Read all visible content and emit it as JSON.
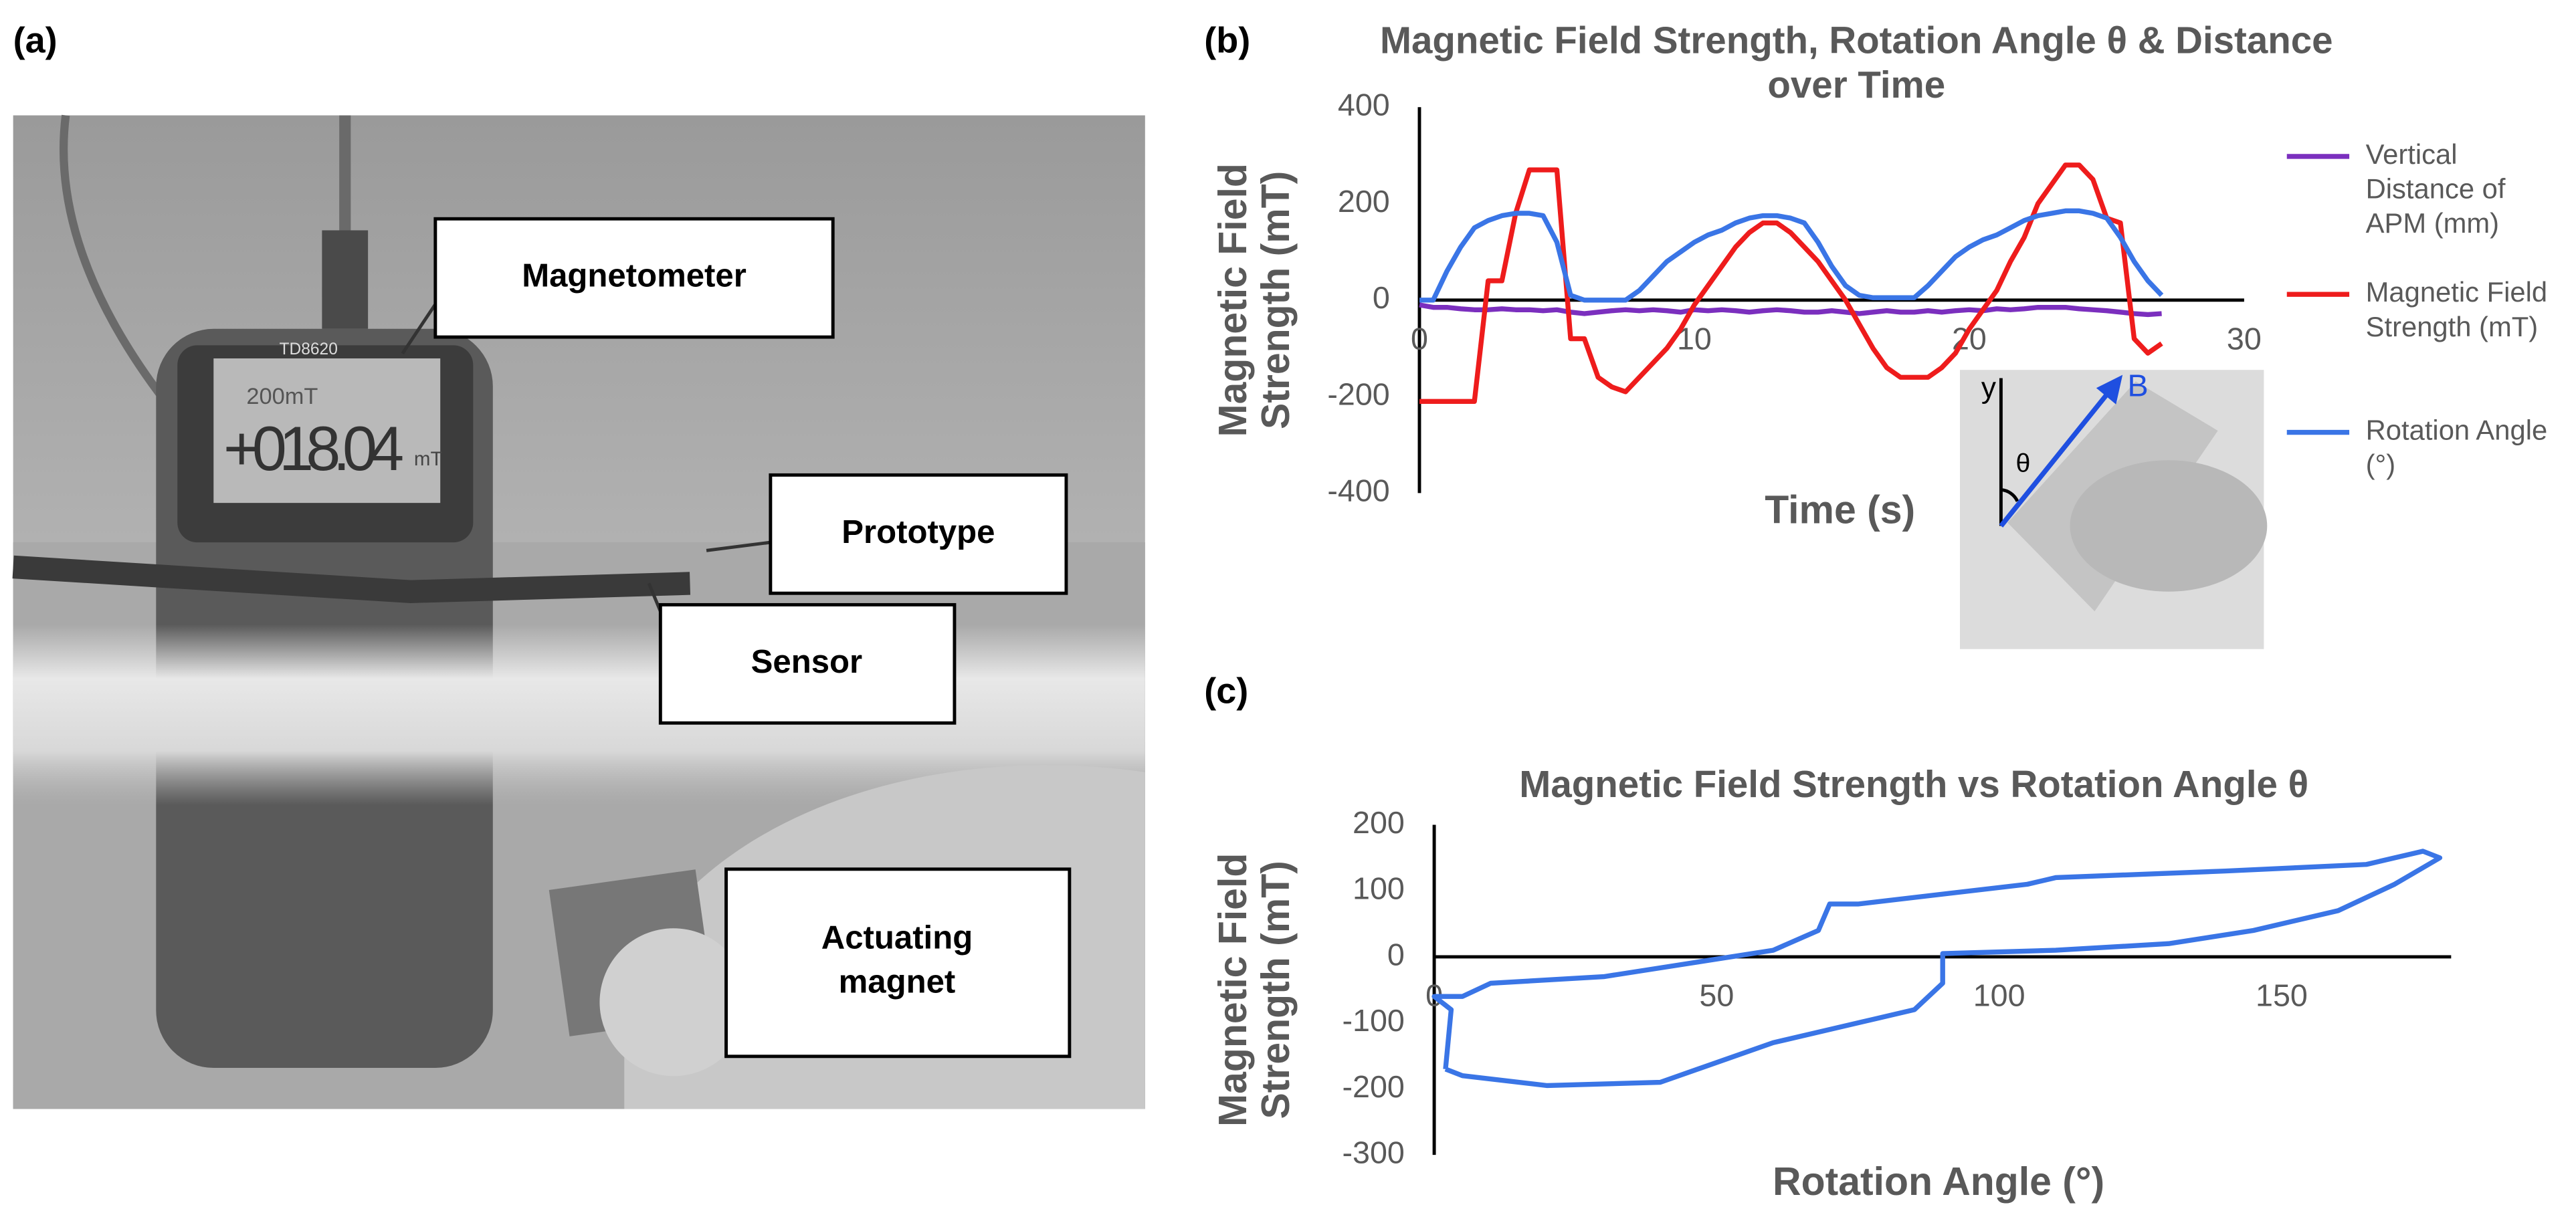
{
  "panels": {
    "a": "(a)",
    "b": "(b)",
    "c": "(c)"
  },
  "photo": {
    "callouts": [
      "Magnetometer",
      "Prototype",
      "Sensor",
      "Actuating magnet"
    ],
    "display": {
      "model": "TD8620",
      "range": "200mT",
      "reading": "+018.04",
      "unit": "mT"
    }
  },
  "chart_data": [
    {
      "type": "line",
      "title": "Magnetic Field Strength, Rotation Angle θ  & Distance over Time",
      "xlabel": "Time (s)",
      "ylabel": "Magnetic Field Strength (mT)",
      "x": [
        0,
        0.5,
        1,
        1.5,
        2,
        2.5,
        3,
        3.5,
        4,
        4.5,
        5,
        5.5,
        6,
        6.5,
        7,
        7.5,
        8,
        8.5,
        9,
        9.5,
        10,
        10.5,
        11,
        11.5,
        12,
        12.5,
        13,
        13.5,
        14,
        14.5,
        15,
        15.5,
        16,
        16.5,
        17,
        17.5,
        18,
        18.5,
        19,
        19.5,
        20,
        20.5,
        21,
        21.5,
        22,
        22.5,
        23,
        23.5,
        24,
        24.5,
        25,
        25.5,
        26,
        26.5,
        27
      ],
      "series": [
        {
          "name": "Vertical Distance of APM (mm)",
          "color": "#7b2fbe",
          "values": [
            -10,
            -15,
            -15,
            -18,
            -20,
            -20,
            -18,
            -20,
            -20,
            -22,
            -20,
            -25,
            -28,
            -25,
            -22,
            -20,
            -22,
            -20,
            -22,
            -25,
            -20,
            -22,
            -20,
            -22,
            -25,
            -22,
            -20,
            -22,
            -25,
            -25,
            -22,
            -25,
            -28,
            -25,
            -22,
            -25,
            -25,
            -22,
            -25,
            -22,
            -20,
            -22,
            -18,
            -20,
            -18,
            -15,
            -15,
            -15,
            -18,
            -20,
            -22,
            -25,
            -28,
            -30,
            -28
          ]
        },
        {
          "name": "Magnetic Field Strength (mT)",
          "color": "#ee1c1c",
          "values": [
            -210,
            -210,
            -210,
            -210,
            -210,
            40,
            40,
            180,
            270,
            270,
            270,
            -80,
            -80,
            -160,
            -180,
            -190,
            -160,
            -130,
            -100,
            -60,
            -10,
            30,
            70,
            110,
            140,
            160,
            160,
            140,
            110,
            80,
            40,
            0,
            -50,
            -100,
            -140,
            -160,
            -160,
            -160,
            -140,
            -110,
            -60,
            -20,
            20,
            80,
            130,
            200,
            240,
            280,
            280,
            250,
            170,
            160,
            -80,
            -110,
            -90
          ]
        },
        {
          "name": "Rotation Angle (°)",
          "color": "#3a75e6",
          "values": [
            0,
            0,
            60,
            110,
            150,
            165,
            175,
            180,
            180,
            175,
            120,
            10,
            0,
            0,
            0,
            0,
            20,
            50,
            80,
            100,
            120,
            135,
            145,
            160,
            170,
            175,
            175,
            170,
            160,
            120,
            70,
            30,
            10,
            5,
            5,
            5,
            5,
            30,
            60,
            90,
            110,
            125,
            135,
            150,
            165,
            175,
            180,
            185,
            185,
            180,
            170,
            130,
            80,
            40,
            10
          ]
        }
      ],
      "xlim": [
        0,
        30
      ],
      "xticks": [
        0,
        10,
        20,
        30
      ],
      "ylim": [
        -400,
        400
      ],
      "yticks": [
        -400,
        -200,
        0,
        200,
        400
      ],
      "legend": "right",
      "inset": {
        "labels": [
          "y",
          "θ",
          "B"
        ]
      }
    },
    {
      "type": "line",
      "title": "Magnetic Field Strength vs Rotation Angle θ",
      "xlabel": "Rotation Angle (°)",
      "ylabel": "Magnetic Field Strength (mT)",
      "color": "#3a75e6",
      "x": [
        2,
        5,
        20,
        40,
        60,
        75,
        85,
        90,
        90,
        110,
        130,
        145,
        160,
        170,
        178,
        175,
        165,
        140,
        110,
        105,
        75,
        70,
        68,
        60,
        45,
        30,
        10,
        5,
        0,
        3,
        2
      ],
      "values": [
        -170,
        -180,
        -195,
        -190,
        -130,
        -100,
        -80,
        -40,
        5,
        10,
        20,
        40,
        70,
        110,
        150,
        160,
        140,
        130,
        120,
        110,
        80,
        80,
        40,
        10,
        -10,
        -30,
        -40,
        -60,
        -60,
        -80,
        -170
      ],
      "xlim": [
        0,
        180
      ],
      "xticks": [
        0,
        50,
        100,
        150
      ],
      "ylim": [
        -300,
        200
      ],
      "yticks": [
        -300,
        -200,
        -100,
        0,
        100,
        200
      ]
    }
  ]
}
